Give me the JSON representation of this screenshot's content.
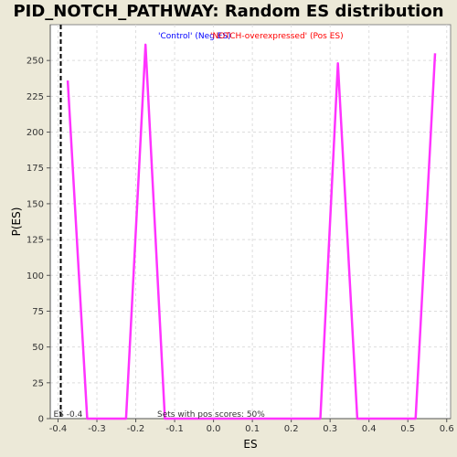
{
  "chart_data": {
    "type": "line",
    "title": "PID_NOTCH_PATHWAY: Random ES distribution",
    "xlabel": "ES",
    "ylabel": "P(ES)",
    "xlim": [
      -0.42,
      0.61
    ],
    "ylim": [
      0,
      275
    ],
    "x_ticks": [
      -0.4,
      -0.3,
      -0.2,
      -0.1,
      0.0,
      0.1,
      0.2,
      0.3,
      0.4,
      0.5,
      0.6
    ],
    "x_tick_labels": [
      "-0.4",
      "-0.3",
      "-0.2",
      "-0.1",
      "0.0",
      "0.1",
      "0.2",
      "0.3",
      "0.4",
      "0.5",
      "0.6"
    ],
    "y_ticks": [
      0,
      25,
      50,
      75,
      100,
      125,
      150,
      175,
      200,
      225,
      250
    ],
    "y_tick_labels": [
      "0",
      "25",
      "50",
      "75",
      "100",
      "125",
      "150",
      "175",
      "200",
      "225",
      "250"
    ],
    "grid": true,
    "series": [
      {
        "color": "#ff33ff",
        "x": [
          -0.375,
          -0.325,
          -0.225,
          -0.175,
          -0.125,
          0.275,
          0.32,
          0.37,
          0.52,
          0.57
        ],
        "y": [
          236,
          0,
          0,
          261,
          0,
          0,
          248,
          0,
          0,
          255
        ]
      }
    ],
    "es_marker": {
      "x": -0.393,
      "color": "#000000",
      "style": "dashed"
    },
    "legend": {
      "placement": "top-center",
      "neg_label": "'Control' (Neg ES)",
      "neg_color": "#0000ff",
      "pos_label": "'NOTCH-overexpressed' (Pos ES)",
      "pos_color": "#ff0000"
    },
    "annotations": {
      "es_label": "ES -0.4",
      "pos_scores": "Sets with pos scores: 50%"
    }
  }
}
